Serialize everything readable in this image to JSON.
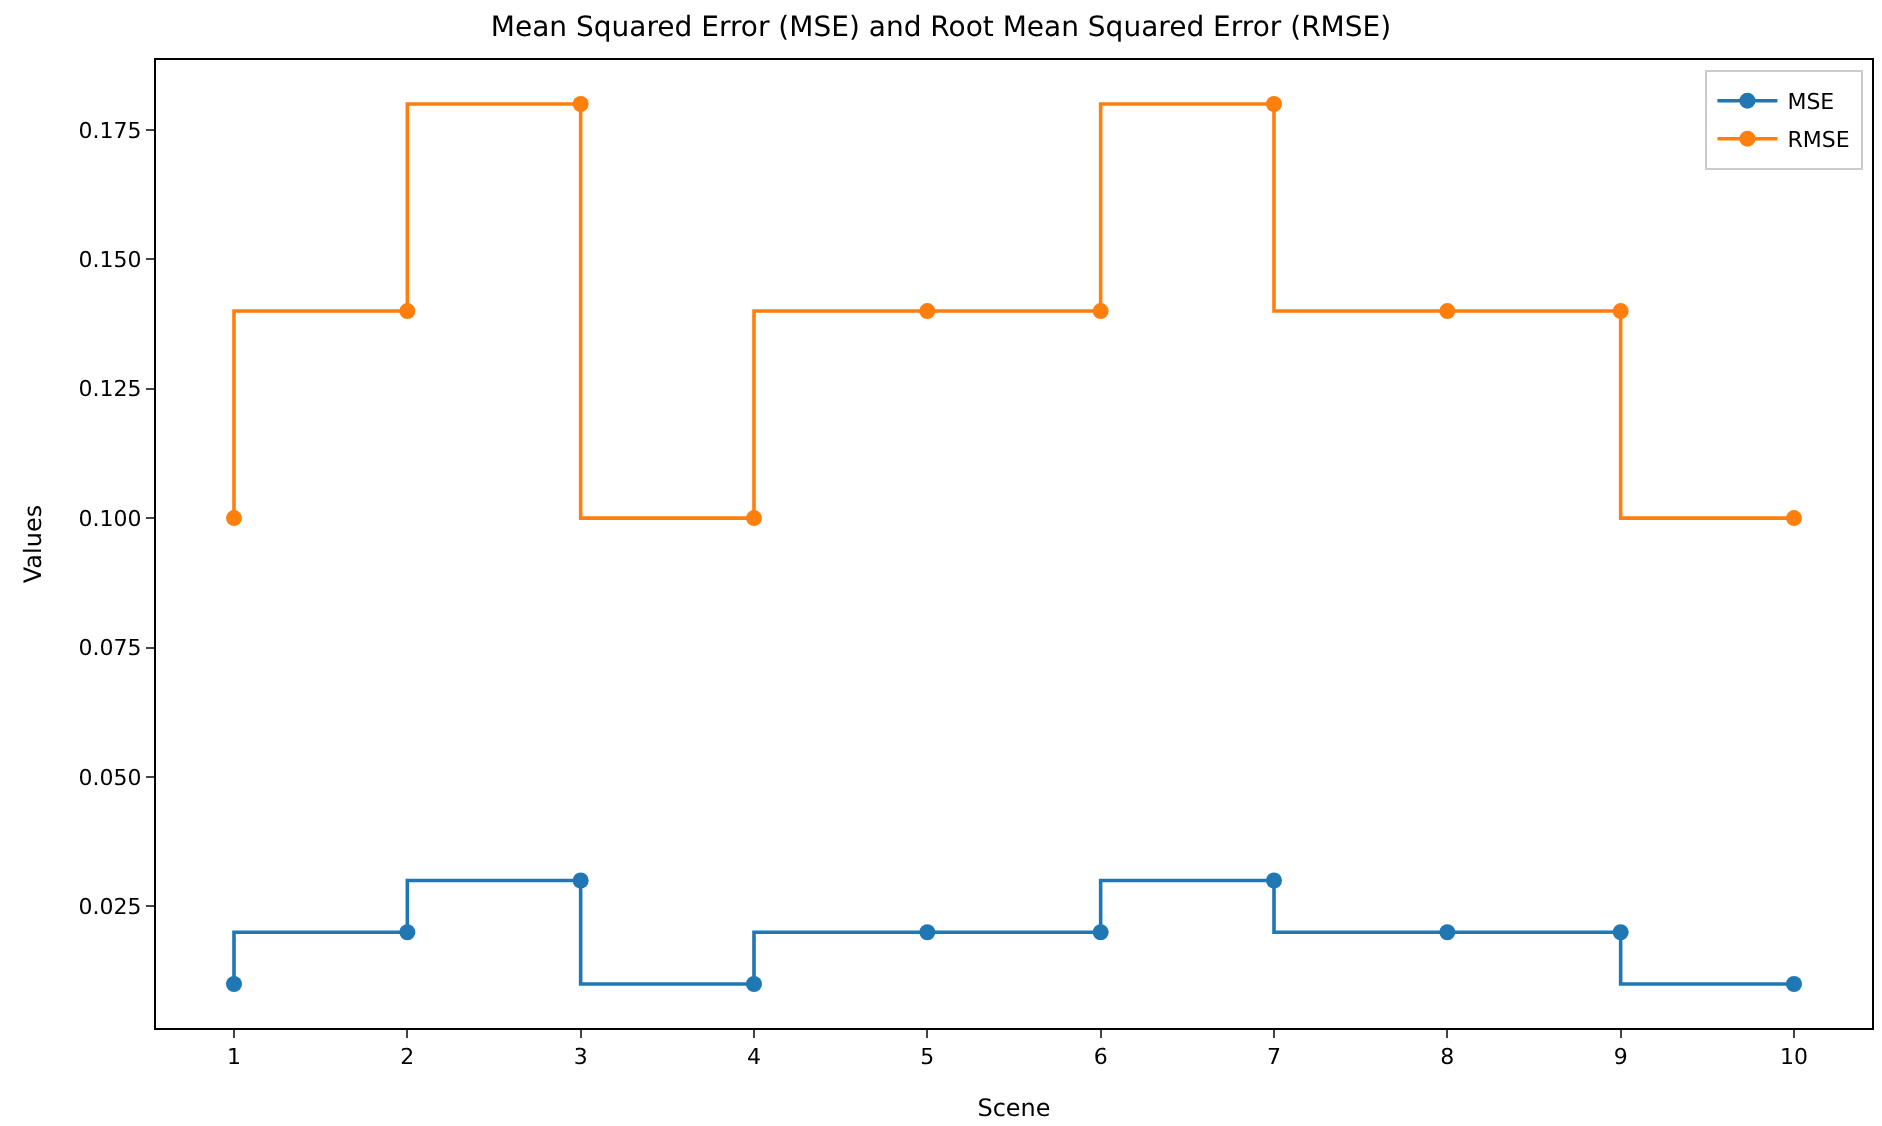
{
  "chart_data": {
    "type": "step",
    "title": "Mean Squared Error (MSE) and Root Mean Squared Error (RMSE)",
    "xlabel": "Scene",
    "ylabel": "Values",
    "x": [
      1,
      2,
      3,
      4,
      5,
      6,
      7,
      8,
      9,
      10
    ],
    "series": [
      {
        "name": "MSE",
        "color": "#1f77b4",
        "values": [
          0.01,
          0.02,
          0.03,
          0.01,
          0.02,
          0.02,
          0.03,
          0.02,
          0.02,
          0.01
        ]
      },
      {
        "name": "RMSE",
        "color": "#ff7f0e",
        "values": [
          0.1,
          0.14,
          0.18,
          0.1,
          0.14,
          0.14,
          0.18,
          0.14,
          0.14,
          0.1
        ]
      }
    ],
    "xlim": [
      0.55,
      10.45
    ],
    "xticks": [
      1,
      2,
      3,
      4,
      5,
      6,
      7,
      8,
      9,
      10
    ],
    "ylim": [
      0.0015,
      0.1885
    ],
    "yticks": [
      {
        "value": 0.025,
        "label": "0.025"
      },
      {
        "value": 0.05,
        "label": "0.050"
      },
      {
        "value": 0.075,
        "label": "0.075"
      },
      {
        "value": 0.1,
        "label": "0.100"
      },
      {
        "value": 0.125,
        "label": "0.125"
      },
      {
        "value": 0.15,
        "label": "0.150"
      },
      {
        "value": 0.175,
        "label": "0.175"
      }
    ],
    "legend": "top right",
    "marker": "circle",
    "line_style": "solid"
  }
}
